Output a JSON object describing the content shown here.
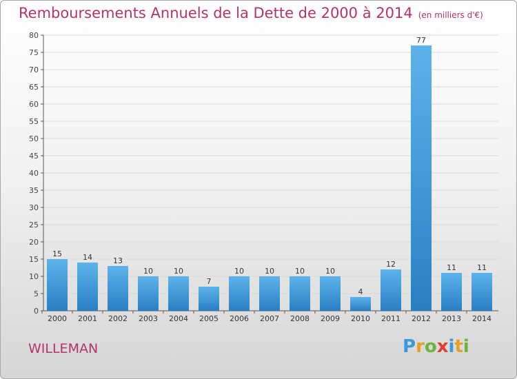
{
  "header": {
    "title": "Remboursements Annuels de la Dette de 2000 à 2014",
    "unit": "(en milliers d'€)"
  },
  "commune": "WILLEMAN",
  "logo": {
    "letters": [
      "P",
      "r",
      "o",
      "x",
      "i",
      "t",
      "i"
    ],
    "colors": [
      "#3a9ad9",
      "#e8a020",
      "#6cb33f",
      "#e63c2f",
      "#3a9ad9",
      "#e8a020",
      "#6cb33f"
    ]
  },
  "colors": {
    "bar_light": "#5db3ea",
    "bar_dark": "#2a7fc4",
    "title": "#b5326b",
    "grid": "#d9d9d9"
  },
  "chart_data": {
    "type": "bar",
    "categories": [
      "2000",
      "2001",
      "2002",
      "2003",
      "2004",
      "2005",
      "2006",
      "2007",
      "2008",
      "2009",
      "2010",
      "2011",
      "2012",
      "2013",
      "2014"
    ],
    "values": [
      15,
      14,
      13,
      10,
      10,
      7,
      10,
      10,
      10,
      10,
      4,
      12,
      77,
      11,
      11
    ],
    "ylim": [
      0,
      80
    ],
    "yticks": [
      0,
      5,
      10,
      15,
      20,
      25,
      30,
      35,
      40,
      45,
      50,
      55,
      60,
      65,
      70,
      75,
      80
    ],
    "grid": true
  }
}
